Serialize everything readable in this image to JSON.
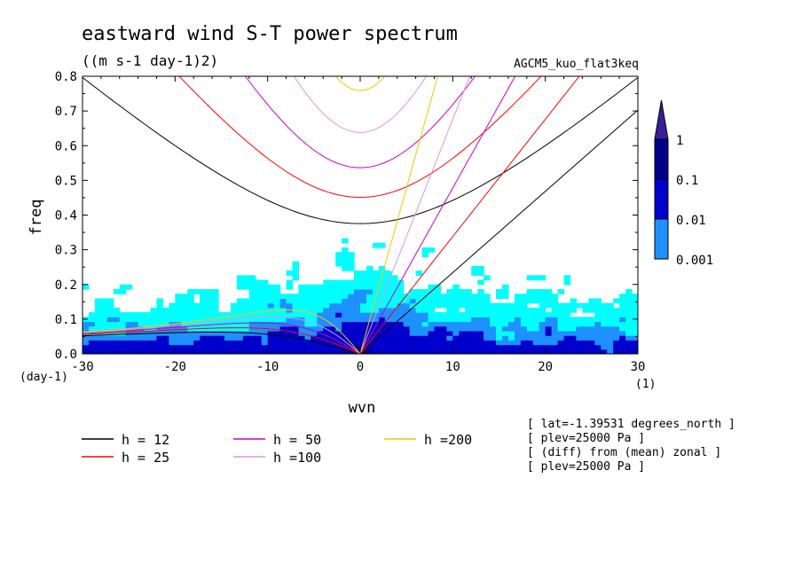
{
  "chart_data": {
    "type": "heatmap",
    "title": "eastward wind S-T power spectrum",
    "subtitle": "((m s-1 day-1)2)",
    "run_label": "AGCM5_kuo_flat3keq",
    "xlabel": "wvn",
    "ylabel": "freq",
    "x_unit_label": "(1)",
    "y_unit_label": "(day-1)",
    "xlim": [
      -30,
      30
    ],
    "ylim": [
      0,
      0.8
    ],
    "x_ticks": [
      -30,
      -20,
      -10,
      0,
      10,
      20,
      30
    ],
    "y_ticks": [
      0.0,
      0.1,
      0.2,
      0.3,
      0.4,
      0.5,
      0.6,
      0.7,
      0.8
    ],
    "x_tick_labels": [
      "-30",
      "-20",
      "-10",
      "0",
      "10",
      "20",
      "30"
    ],
    "y_tick_labels": [
      "0.0",
      "0.1",
      "0.2",
      "0.3",
      "0.4",
      "0.5",
      "0.6",
      "0.7",
      "0.8"
    ],
    "colorbar": {
      "levels": [
        "1",
        "0.1",
        "0.01",
        "0.001"
      ],
      "colors": {
        "level_0001": "#00ffff",
        "level_001": "#1e90ff",
        "level_01": "#0000cd",
        "level_1": "#00008b",
        "over": "#3a1f99"
      }
    },
    "dispersion_curves": [
      {
        "name": "h = 12",
        "equivalent_depth_m": 12,
        "color": "#000000"
      },
      {
        "name": "h = 25",
        "equivalent_depth_m": 25,
        "color": "#ff0000"
      },
      {
        "name": "h = 50",
        "equivalent_depth_m": 50,
        "color": "#c800c8"
      },
      {
        "name": "h =100",
        "equivalent_depth_m": 100,
        "color": "#dc96dc"
      },
      {
        "name": "h =200",
        "equivalent_depth_m": 200,
        "color": "#f0c800"
      }
    ],
    "grid": false,
    "legend_position": "bottom-left"
  },
  "info_lines": [
    "[ lat=-1.39531 degrees_north ]",
    "[ plev=25000 Pa ]",
    "[ (diff) from (mean) zonal ]",
    "[ plev=25000 Pa ]"
  ]
}
